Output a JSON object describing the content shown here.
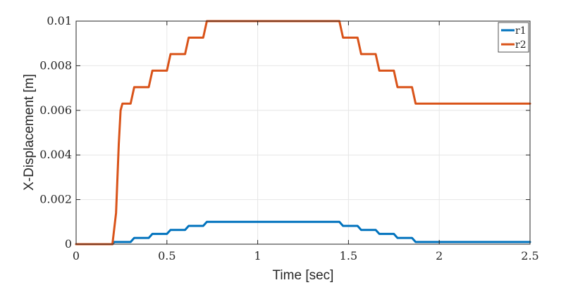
{
  "chart_data": {
    "type": "line",
    "xlabel": "Time [sec]",
    "ylabel": "X-Displacement [m]",
    "xlim": [
      0,
      2.5
    ],
    "ylim": [
      0,
      0.01
    ],
    "x_ticks": [
      0,
      0.5,
      1,
      1.5,
      2,
      2.5
    ],
    "x_tick_labels": [
      "0",
      "0.5",
      "1",
      "1.5",
      "2",
      "2.5"
    ],
    "y_ticks": [
      0,
      0.002,
      0.004,
      0.006,
      0.008,
      0.01
    ],
    "y_tick_labels": [
      "0",
      "0.002",
      "0.004",
      "0.006",
      "0.008",
      "0.01"
    ],
    "grid": true,
    "legend_position": "top-right",
    "series": [
      {
        "name": "r1",
        "color": "#0072BD",
        "x": [
          0,
          0.2,
          0.21,
          0.3,
          0.32,
          0.4,
          0.42,
          0.5,
          0.52,
          0.6,
          0.62,
          0.7,
          0.72,
          1.45,
          1.47,
          1.55,
          1.57,
          1.65,
          1.67,
          1.75,
          1.77,
          1.85,
          1.87,
          2.5
        ],
        "y": [
          0,
          0,
          0.0001,
          0.0001,
          0.00028,
          0.00028,
          0.00046,
          0.00046,
          0.00064,
          0.00064,
          0.00082,
          0.00082,
          0.001,
          0.001,
          0.00082,
          0.00082,
          0.00064,
          0.00064,
          0.00046,
          0.00046,
          0.00028,
          0.00028,
          0.0001,
          0.0001
        ]
      },
      {
        "name": "r2",
        "color": "#D95319",
        "x": [
          0,
          0.2,
          0.22,
          0.235,
          0.245,
          0.255,
          0.3,
          0.32,
          0.4,
          0.42,
          0.5,
          0.52,
          0.6,
          0.62,
          0.7,
          0.72,
          1.45,
          1.47,
          1.55,
          1.57,
          1.65,
          1.67,
          1.75,
          1.77,
          1.85,
          1.87,
          2.5
        ],
        "y": [
          0,
          0,
          0.0014,
          0.0045,
          0.006,
          0.0063,
          0.0063,
          0.00704,
          0.00704,
          0.00778,
          0.00778,
          0.00852,
          0.00852,
          0.00926,
          0.00926,
          0.01,
          0.01,
          0.00926,
          0.00926,
          0.00852,
          0.00852,
          0.00778,
          0.00778,
          0.00704,
          0.00704,
          0.0063,
          0.0063
        ]
      }
    ]
  }
}
